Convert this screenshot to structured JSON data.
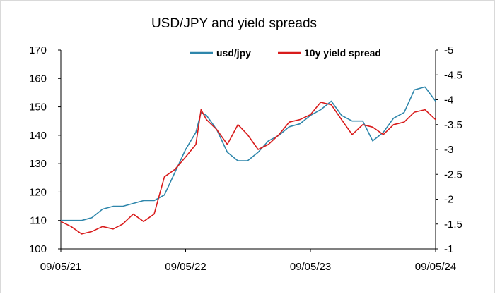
{
  "chart_data": {
    "type": "line",
    "title": "USD/JPY and yield spreads",
    "x_ticks": [
      "09/05/21",
      "09/05/22",
      "09/05/23",
      "09/05/24"
    ],
    "y_left": {
      "min": 100,
      "max": 170,
      "ticks": [
        "100",
        "110",
        "120",
        "130",
        "140",
        "150",
        "160",
        "170"
      ]
    },
    "y_right": {
      "min": -5,
      "max": -1,
      "reversed": true,
      "ticks": [
        "-5",
        "-4.5",
        "-4",
        "-3.5",
        "-3",
        "-2.5",
        "-2",
        "-1.5",
        "-1"
      ]
    },
    "legend_position": "top",
    "series": [
      {
        "name": "usd/jpy",
        "axis": "left",
        "color": "#2E86AB",
        "x": [
          "09/05/21",
          "10/05/21",
          "11/05/21",
          "12/05/21",
          "01/05/22",
          "02/05/22",
          "03/05/22",
          "04/05/22",
          "05/05/22",
          "06/05/22",
          "07/05/22",
          "08/05/22",
          "09/05/22",
          "10/05/22",
          "10/20/22",
          "11/05/22",
          "12/05/22",
          "01/05/23",
          "02/05/23",
          "03/05/23",
          "04/05/23",
          "05/05/23",
          "06/05/23",
          "07/05/23",
          "08/05/23",
          "09/05/23",
          "10/05/23",
          "11/05/23",
          "12/05/23",
          "01/05/24",
          "02/05/24",
          "03/05/24",
          "04/05/24",
          "05/05/24",
          "06/05/24",
          "07/05/24",
          "08/05/24",
          "09/05/24"
        ],
        "y": [
          110,
          110,
          110,
          111,
          114,
          115,
          115,
          116,
          117,
          117,
          119,
          127,
          135,
          141,
          148,
          147,
          142,
          134,
          131,
          131,
          134,
          138,
          140,
          143,
          144,
          147,
          149,
          152,
          147,
          145,
          145,
          138,
          141,
          146,
          148,
          156,
          157,
          152
        ]
      },
      {
        "name": "10y yield spread",
        "axis": "right",
        "color": "#D81B1B",
        "x": [
          "09/05/21",
          "10/05/21",
          "11/05/21",
          "12/05/21",
          "01/05/22",
          "02/05/22",
          "03/05/22",
          "04/05/22",
          "05/05/22",
          "06/05/22",
          "07/05/22",
          "08/05/22",
          "09/05/22",
          "10/05/22",
          "10/20/22",
          "11/05/22",
          "12/05/22",
          "01/05/23",
          "02/05/23",
          "03/05/23",
          "04/05/23",
          "05/05/23",
          "06/05/23",
          "07/05/23",
          "08/05/23",
          "09/05/23",
          "10/05/23",
          "11/05/23",
          "12/05/23",
          "01/05/24",
          "02/05/24",
          "03/05/24",
          "04/05/24",
          "05/05/24",
          "06/05/24",
          "07/05/24",
          "08/05/24",
          "09/05/24"
        ],
        "y": [
          -1.55,
          -1.45,
          -1.3,
          -1.35,
          -1.45,
          -1.4,
          -1.5,
          -1.7,
          -1.55,
          -1.7,
          -2.45,
          -2.6,
          -2.85,
          -3.1,
          -3.8,
          -3.6,
          -3.4,
          -3.1,
          -3.5,
          -3.3,
          -3.0,
          -3.1,
          -3.3,
          -3.55,
          -3.6,
          -3.7,
          -3.95,
          -3.9,
          -3.6,
          -3.3,
          -3.5,
          -3.45,
          -3.3,
          -3.5,
          -3.55,
          -3.75,
          -3.8,
          -3.6
        ]
      }
    ]
  }
}
